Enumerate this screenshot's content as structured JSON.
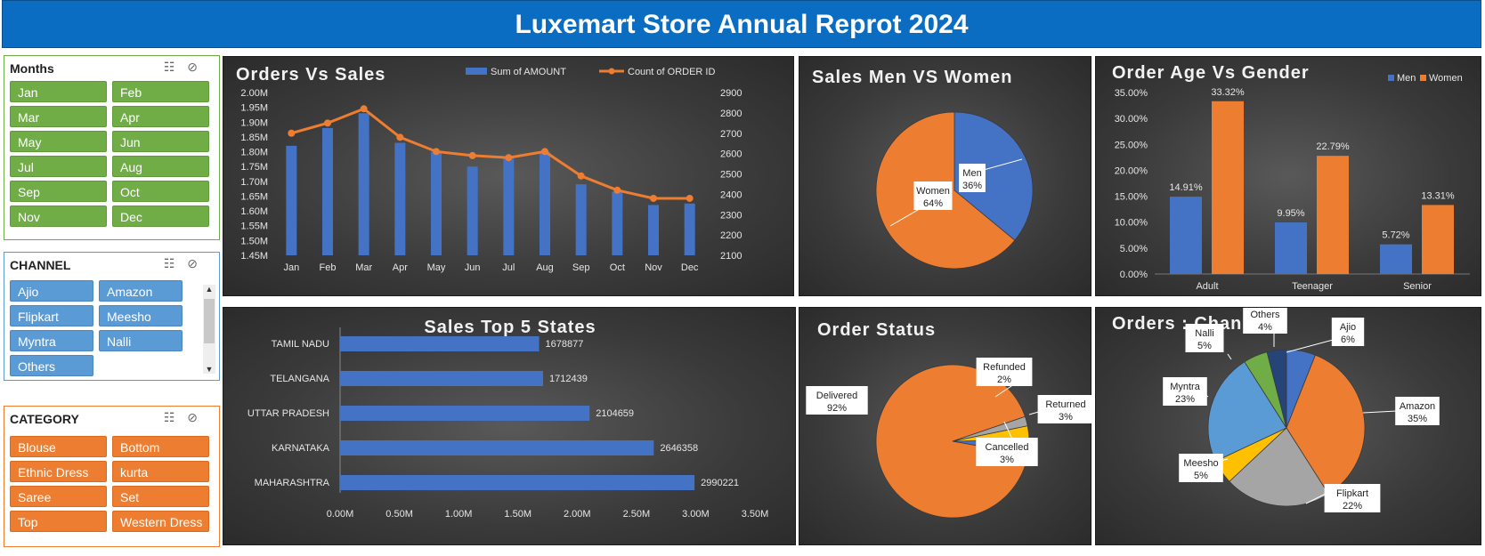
{
  "header": {
    "title": "Luxemart Store Annual Reprot 2024"
  },
  "slicers": {
    "months": {
      "title": "Months",
      "items": [
        "Jan",
        "Feb",
        "Mar",
        "Apr",
        "May",
        "Jun",
        "Jul",
        "Aug",
        "Sep",
        "Oct",
        "Nov",
        "Dec"
      ],
      "color": "#70ad47"
    },
    "channel": {
      "title": "CHANNEL",
      "items": [
        "Ajio",
        "Amazon",
        "Flipkart",
        "Meesho",
        "Myntra",
        "Nalli",
        "Others"
      ],
      "color": "#5b9bd5"
    },
    "category": {
      "title": "CATEGORY",
      "items": [
        "Blouse",
        "Bottom",
        "Ethnic Dress",
        "kurta",
        "Saree",
        "Set",
        "Top",
        "Western Dress"
      ],
      "color": "#ed7d31"
    },
    "icons": {
      "multiselect": "multi-select-icon",
      "clear": "clear-filter-icon"
    }
  },
  "colors": {
    "bar_blue": "#4472c4",
    "line_orange": "#ed7d31",
    "grey": "#a5a5a5",
    "yellow": "#ffc000",
    "green": "#70ad47",
    "navy": "#264478"
  },
  "chart_data": [
    {
      "id": "orders_vs_sales",
      "type": "bar",
      "title": "Orders Vs Sales",
      "categories": [
        "Jan",
        "Feb",
        "Mar",
        "Apr",
        "May",
        "Jun",
        "Jul",
        "Aug",
        "Sep",
        "Oct",
        "Nov",
        "Dec"
      ],
      "series": [
        {
          "name": "Sum of AMOUNT",
          "type": "bar",
          "axis": "left",
          "values": [
            1.82,
            1.88,
            1.93,
            1.83,
            1.8,
            1.75,
            1.78,
            1.8,
            1.69,
            1.665,
            1.62,
            1.625
          ]
        },
        {
          "name": "Count of ORDER ID",
          "type": "line",
          "axis": "right",
          "values": [
            2700,
            2750,
            2820,
            2680,
            2610,
            2590,
            2580,
            2610,
            2490,
            2420,
            2380,
            2380
          ]
        }
      ],
      "left_ticks": [
        "2.00M",
        "1.95M",
        "1.90M",
        "1.85M",
        "1.80M",
        "1.75M",
        "1.70M",
        "1.65M",
        "1.60M",
        "1.55M",
        "1.50M",
        "1.45M"
      ],
      "right_ticks": [
        "2900",
        "2800",
        "2700",
        "2600",
        "2500",
        "2400",
        "2300",
        "2200",
        "2100"
      ],
      "ylim_left": [
        1.45,
        2.0
      ],
      "ylim_right": [
        2100,
        2900
      ],
      "legend": "top"
    },
    {
      "id": "sales_men_women",
      "type": "pie",
      "title": "Sales Men VS Women",
      "slices": [
        {
          "name": "Men",
          "value": 36,
          "label": "36%"
        },
        {
          "name": "Women",
          "value": 64,
          "label": "64%"
        }
      ]
    },
    {
      "id": "order_age_gender",
      "type": "bar",
      "title": "Order Age Vs Gender",
      "categories": [
        "Adult",
        "Teenager",
        "Senior"
      ],
      "series": [
        {
          "name": "Men",
          "values": [
            14.91,
            9.95,
            5.72
          ],
          "labels": [
            "14.91%",
            "9.95%",
            "5.72%"
          ]
        },
        {
          "name": "Women",
          "values": [
            33.32,
            22.79,
            13.31
          ],
          "labels": [
            "33.32%",
            "22.79%",
            "13.31%"
          ]
        }
      ],
      "ticks": [
        "35.00%",
        "30.00%",
        "25.00%",
        "20.00%",
        "15.00%",
        "10.00%",
        "5.00%",
        "0.00%"
      ],
      "ylim": [
        0,
        35
      ],
      "legend": "top-right"
    },
    {
      "id": "sales_top5_states",
      "type": "bar",
      "orientation": "horizontal",
      "title": "Sales Top 5 States",
      "categories": [
        "TAMIL NADU",
        "TELANGANA",
        "UTTAR PRADESH",
        "KARNATAKA",
        "MAHARASHTRA"
      ],
      "values": [
        1678877,
        1712439,
        2104659,
        2646358,
        2990221
      ],
      "value_labels": [
        "1678877",
        "1712439",
        "2104659",
        "2646358",
        "2990221"
      ],
      "ticks": [
        "0.00M",
        "0.50M",
        "1.00M",
        "1.50M",
        "2.00M",
        "2.50M",
        "3.00M",
        "3.50M"
      ],
      "xlim": [
        0,
        3500000
      ]
    },
    {
      "id": "order_status",
      "type": "pie",
      "title": "Order Status",
      "slices": [
        {
          "name": "Delivered",
          "value": 92,
          "label": "92%"
        },
        {
          "name": "Refunded",
          "value": 2,
          "label": "2%"
        },
        {
          "name": "Returned",
          "value": 3,
          "label": "3%"
        },
        {
          "name": "Cancelled",
          "value": 3,
          "label": "3%"
        }
      ]
    },
    {
      "id": "orders_channels",
      "type": "pie",
      "title": "Orders : Channels",
      "slices": [
        {
          "name": "Ajio",
          "value": 6,
          "label": "6%"
        },
        {
          "name": "Amazon",
          "value": 35,
          "label": "35%"
        },
        {
          "name": "Flipkart",
          "value": 22,
          "label": "22%"
        },
        {
          "name": "Meesho",
          "value": 5,
          "label": "5%"
        },
        {
          "name": "Myntra",
          "value": 23,
          "label": "23%"
        },
        {
          "name": "Nalli",
          "value": 5,
          "label": "5%"
        },
        {
          "name": "Others",
          "value": 4,
          "label": "4%"
        }
      ]
    }
  ]
}
